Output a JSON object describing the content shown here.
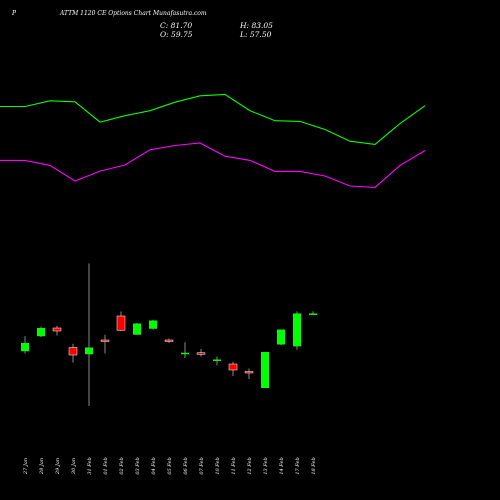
{
  "header": {
    "prefix": "P",
    "title": "ATTM 1120 CE Options Chart Munafasutra.com"
  },
  "ohlc": {
    "close": "C: 81.70",
    "high": "H: 83.05",
    "open": "O: 59.75",
    "low": "L: 57.50"
  },
  "colors": {
    "background": "#000000",
    "up": "#00ff00",
    "down": "#ff0000",
    "upper_band": "#00ff00",
    "lower_band": "#ff00ff",
    "wick": "#888888"
  },
  "chart_data": [
    {
      "type": "line",
      "title": "",
      "series": [
        {
          "values": [
            1.0,
            1.0,
            2.6,
            2.3,
            -3.4,
            -1.6,
            -0.2,
            2.2,
            4.0,
            4.4,
            -0.2,
            -3.0,
            -3.2,
            -5.5,
            -8.8,
            -9.7,
            -3.8,
            1.2
          ]
        },
        {
          "values": [
            -14.2,
            -14.2,
            -15.6,
            -20.0,
            -17.2,
            -15.5,
            -11.2,
            -10.0,
            -9.3,
            -13.0,
            -14.2,
            -17.3,
            -17.3,
            -18.6,
            -21.4,
            -21.8,
            -15.6,
            -11.4
          ]
        }
      ]
    },
    {
      "type": "candlestick",
      "title": "",
      "categories": [
        "27 Jan",
        "28 Jan",
        "29 Jan",
        "30 Jan",
        "31 Feb",
        "01 Feb",
        "02 Feb",
        "03 Feb",
        "04 Feb",
        "05 Feb",
        "06 Feb",
        "07 Feb",
        "10 Feb",
        "11 Feb",
        "12 Feb",
        "13 Feb",
        "14 Feb",
        "17 Feb",
        "18 Feb"
      ],
      "candles": [
        {
          "label": "27 Jan",
          "open": 56.5,
          "high": 66.5,
          "low": 55.0,
          "close": 62.0
        },
        {
          "label": "28 Jan",
          "open": 66.5,
          "high": 73.0,
          "low": 66.0,
          "close": 72.0
        },
        {
          "label": "29 Jan",
          "open": 72.0,
          "high": 73.5,
          "low": 67.0,
          "close": 70.0
        },
        {
          "label": "30 Jan",
          "open": 59.0,
          "high": 61.5,
          "low": 49.0,
          "close": 54.0
        },
        {
          "label": "31 Feb",
          "open": 54.5,
          "high": 115.0,
          "low": 20.0,
          "close": 59.0
        },
        {
          "label": "01 Feb",
          "open": 64.0,
          "high": 67.5,
          "low": 55.0,
          "close": 63.0
        },
        {
          "label": "02 Feb",
          "open": 80.0,
          "high": 83.0,
          "low": 70.0,
          "close": 70.5
        },
        {
          "label": "03 Feb",
          "open": 67.5,
          "high": 75.5,
          "low": 67.5,
          "close": 75.0
        },
        {
          "label": "04 Feb",
          "open": 71.5,
          "high": 77.5,
          "low": 71.0,
          "close": 77.0
        },
        {
          "label": "05 Feb",
          "open": 64.0,
          "high": 65.0,
          "low": 62.0,
          "close": 63.0
        },
        {
          "label": "06 Feb",
          "open": 55.5,
          "high": 62.5,
          "low": 52.0,
          "close": 55.5
        },
        {
          "label": "07 Feb",
          "open": 55.5,
          "high": 58.0,
          "low": 53.0,
          "close": 55.0
        },
        {
          "label": "10 Feb",
          "open": 51.0,
          "high": 53.0,
          "low": 47.0,
          "close": 51.0
        },
        {
          "label": "11 Feb",
          "open": 48.0,
          "high": 49.5,
          "low": 40.0,
          "close": 44.0
        },
        {
          "label": "12 Feb",
          "open": 43.0,
          "high": 45.0,
          "low": 38.0,
          "close": 42.5
        },
        {
          "label": "13 Feb",
          "open": 32.0,
          "high": 56.0,
          "low": 32.0,
          "close": 56.0
        },
        {
          "label": "14 Feb",
          "open": 61.0,
          "high": 71.0,
          "low": 60.5,
          "close": 71.0
        },
        {
          "label": "17 Feb",
          "open": 59.75,
          "high": 83.05,
          "low": 57.5,
          "close": 81.7
        },
        {
          "label": "18 Feb",
          "open": 81.7,
          "high": 83.05,
          "low": 81.0,
          "close": 81.7
        }
      ]
    }
  ]
}
